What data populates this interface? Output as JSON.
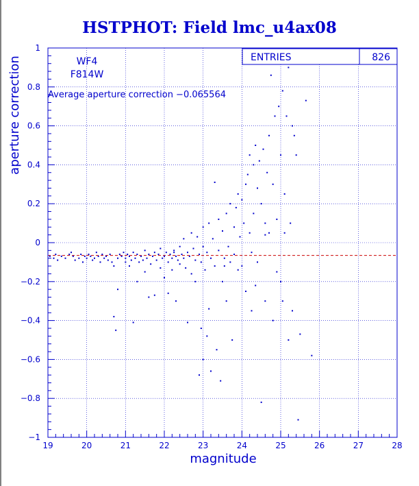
{
  "chart_data": {
    "type": "scatter",
    "title": "HSTPHOT: Field lmc_u4ax08",
    "xlabel": "magnitude",
    "ylabel": "aperture correction",
    "xlim": [
      19,
      28
    ],
    "ylim": [
      -1,
      1
    ],
    "x_ticks": [
      19,
      20,
      21,
      22,
      23,
      24,
      25,
      26,
      27,
      28
    ],
    "y_ticks": [
      1,
      0.8,
      0.6,
      0.4,
      0.2,
      0,
      -0.2,
      -0.4,
      -0.6,
      -0.8,
      -1
    ],
    "x_tick_labels": [
      "19",
      "20",
      "21",
      "22",
      "23",
      "24",
      "25",
      "26",
      "27",
      "28"
    ],
    "y_tick_labels": [
      "1",
      "0.8",
      "0.6",
      "0.4",
      "0.2",
      "0",
      "−0.2",
      "−0.4",
      "−0.6",
      "−0.8",
      "−1"
    ],
    "grid": true,
    "annotations": {
      "chip": "WF4",
      "filter": "F814W",
      "average_text": "Average aperture correction −0.065564"
    },
    "average_value": -0.065564,
    "stats": {
      "entries_label": "ENTRIES",
      "entries_value": "826"
    },
    "points": [
      [
        19.05,
        -0.07
      ],
      [
        19.15,
        -0.08
      ],
      [
        19.2,
        -0.06
      ],
      [
        19.25,
        -0.09
      ],
      [
        19.35,
        -0.07
      ],
      [
        19.45,
        -0.08
      ],
      [
        19.55,
        -0.06
      ],
      [
        19.6,
        -0.05
      ],
      [
        19.65,
        -0.07
      ],
      [
        19.7,
        -0.09
      ],
      [
        19.8,
        -0.08
      ],
      [
        19.85,
        -0.06
      ],
      [
        19.9,
        -0.1
      ],
      [
        19.95,
        -0.07
      ],
      [
        20.0,
        -0.08
      ],
      [
        20.05,
        -0.06
      ],
      [
        20.1,
        -0.07
      ],
      [
        20.15,
        -0.09
      ],
      [
        20.2,
        -0.08
      ],
      [
        20.25,
        -0.05
      ],
      [
        20.3,
        -0.07
      ],
      [
        20.35,
        -0.1
      ],
      [
        20.4,
        -0.06
      ],
      [
        20.45,
        -0.08
      ],
      [
        20.5,
        -0.07
      ],
      [
        20.55,
        -0.09
      ],
      [
        20.6,
        -0.06
      ],
      [
        20.65,
        -0.1
      ],
      [
        20.7,
        -0.12
      ],
      [
        20.7,
        -0.38
      ],
      [
        20.75,
        -0.45
      ],
      [
        20.8,
        -0.24
      ],
      [
        20.8,
        -0.08
      ],
      [
        20.85,
        -0.06
      ],
      [
        20.9,
        -0.07
      ],
      [
        20.95,
        -0.05
      ],
      [
        21.0,
        -0.08
      ],
      [
        21.0,
        -0.1
      ],
      [
        21.05,
        -0.06
      ],
      [
        21.1,
        -0.07
      ],
      [
        21.1,
        -0.12
      ],
      [
        21.15,
        -0.09
      ],
      [
        21.2,
        -0.41
      ],
      [
        21.2,
        -0.05
      ],
      [
        21.25,
        -0.08
      ],
      [
        21.3,
        -0.06
      ],
      [
        21.3,
        -0.2
      ],
      [
        21.35,
        -0.1
      ],
      [
        21.4,
        -0.07
      ],
      [
        21.45,
        -0.09
      ],
      [
        21.5,
        -0.15
      ],
      [
        21.5,
        -0.04
      ],
      [
        21.55,
        -0.08
      ],
      [
        21.6,
        -0.06
      ],
      [
        21.6,
        -0.28
      ],
      [
        21.65,
        -0.11
      ],
      [
        21.7,
        -0.07
      ],
      [
        21.75,
        -0.05
      ],
      [
        21.75,
        -0.27
      ],
      [
        21.8,
        -0.09
      ],
      [
        21.85,
        -0.06
      ],
      [
        21.9,
        -0.13
      ],
      [
        21.9,
        -0.03
      ],
      [
        21.95,
        -0.08
      ],
      [
        22.0,
        -0.07
      ],
      [
        22.0,
        -0.18
      ],
      [
        22.05,
        -0.05
      ],
      [
        22.1,
        -0.1
      ],
      [
        22.1,
        -0.26
      ],
      [
        22.15,
        -0.06
      ],
      [
        22.2,
        -0.08
      ],
      [
        22.2,
        -0.14
      ],
      [
        22.25,
        -0.04
      ],
      [
        22.3,
        -0.07
      ],
      [
        22.3,
        -0.3
      ],
      [
        22.35,
        -0.09
      ],
      [
        22.4,
        -0.02
      ],
      [
        22.4,
        -0.11
      ],
      [
        22.45,
        -0.06
      ],
      [
        22.5,
        -0.08
      ],
      [
        22.5,
        0.02
      ],
      [
        22.55,
        -0.13
      ],
      [
        22.6,
        -0.05
      ],
      [
        22.6,
        -0.41
      ],
      [
        22.65,
        -0.07
      ],
      [
        22.7,
        0.05
      ],
      [
        22.7,
        -0.16
      ],
      [
        22.75,
        -0.03
      ],
      [
        22.8,
        -0.09
      ],
      [
        22.8,
        -0.2
      ],
      [
        22.85,
        0.03
      ],
      [
        22.9,
        -0.06
      ],
      [
        22.9,
        -0.68
      ],
      [
        22.95,
        -0.1
      ],
      [
        23.0,
        0.08
      ],
      [
        23.0,
        -0.02
      ],
      [
        23.0,
        -0.6
      ],
      [
        23.05,
        -0.14
      ],
      [
        23.1,
        -0.05
      ],
      [
        23.1,
        -0.48
      ],
      [
        23.15,
        0.1
      ],
      [
        23.2,
        -0.08
      ],
      [
        23.2,
        -0.66
      ],
      [
        23.25,
        0.02
      ],
      [
        23.3,
        -0.12
      ],
      [
        23.3,
        0.31
      ],
      [
        23.35,
        -0.55
      ],
      [
        23.4,
        0.12
      ],
      [
        23.4,
        -0.04
      ],
      [
        23.45,
        -0.71
      ],
      [
        23.5,
        0.06
      ],
      [
        23.5,
        -0.2
      ],
      [
        23.55,
        -0.08
      ],
      [
        23.6,
        0.15
      ],
      [
        23.6,
        -0.3
      ],
      [
        23.65,
        -0.02
      ],
      [
        23.7,
        0.2
      ],
      [
        23.7,
        -0.1
      ],
      [
        23.75,
        -0.5
      ],
      [
        23.8,
        0.08
      ],
      [
        23.8,
        -0.06
      ],
      [
        23.85,
        0.18
      ],
      [
        23.9,
        0.25
      ],
      [
        23.9,
        -0.14
      ],
      [
        23.95,
        0.03
      ],
      [
        24.0,
        0.22
      ],
      [
        24.0,
        -0.12
      ],
      [
        24.05,
        0.1
      ],
      [
        24.1,
        0.3
      ],
      [
        24.1,
        -0.25
      ],
      [
        24.15,
        0.35
      ],
      [
        24.2,
        0.05
      ],
      [
        24.2,
        0.45
      ],
      [
        24.25,
        -0.05
      ],
      [
        24.3,
        0.4
      ],
      [
        24.3,
        0.15
      ],
      [
        24.35,
        0.5
      ],
      [
        24.4,
        -0.1
      ],
      [
        24.4,
        0.28
      ],
      [
        24.45,
        0.42
      ],
      [
        24.5,
        -0.82
      ],
      [
        24.5,
        0.2
      ],
      [
        24.55,
        0.48
      ],
      [
        24.6,
        0.1
      ],
      [
        24.6,
        -0.3
      ],
      [
        24.65,
        0.36
      ],
      [
        24.7,
        0.05
      ],
      [
        24.7,
        0.55
      ],
      [
        24.75,
        0.86
      ],
      [
        24.8,
        -0.4
      ],
      [
        24.8,
        0.3
      ],
      [
        24.85,
        0.65
      ],
      [
        24.9,
        0.12
      ],
      [
        24.9,
        -0.15
      ],
      [
        24.95,
        0.7
      ],
      [
        25.0,
        0.45
      ],
      [
        25.0,
        -0.2
      ],
      [
        25.05,
        0.78
      ],
      [
        25.05,
        -0.3
      ],
      [
        25.1,
        0.25
      ],
      [
        25.15,
        0.65
      ],
      [
        25.2,
        -0.5
      ],
      [
        25.2,
        0.9
      ],
      [
        25.25,
        0.1
      ],
      [
        25.3,
        0.6
      ],
      [
        25.3,
        -0.35
      ],
      [
        25.35,
        0.55
      ],
      [
        25.4,
        0.45
      ],
      [
        25.45,
        -0.91
      ],
      [
        25.5,
        -0.47
      ],
      [
        25.65,
        0.73
      ],
      [
        25.8,
        -0.58
      ],
      [
        24.25,
        -0.35
      ],
      [
        23.15,
        -0.34
      ],
      [
        22.95,
        -0.44
      ],
      [
        24.35,
        -0.22
      ],
      [
        23.55,
        -0.12
      ],
      [
        24.6,
        0.04
      ],
      [
        25.1,
        0.05
      ],
      [
        22.25,
        -0.05
      ]
    ]
  }
}
